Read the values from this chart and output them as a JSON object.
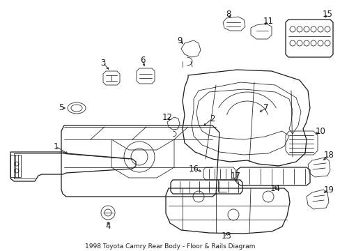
{
  "title": "1998 Toyota Camry Rear Body - Floor & Rails Diagram",
  "bg_color": "#ffffff",
  "line_color": "#1a1a1a",
  "figsize": [
    4.89,
    3.6
  ],
  "dpi": 100,
  "font_size": 8.5,
  "font_size_title": 6.5,
  "lw_main": 0.9,
  "lw_thin": 0.55,
  "lw_med": 0.7
}
